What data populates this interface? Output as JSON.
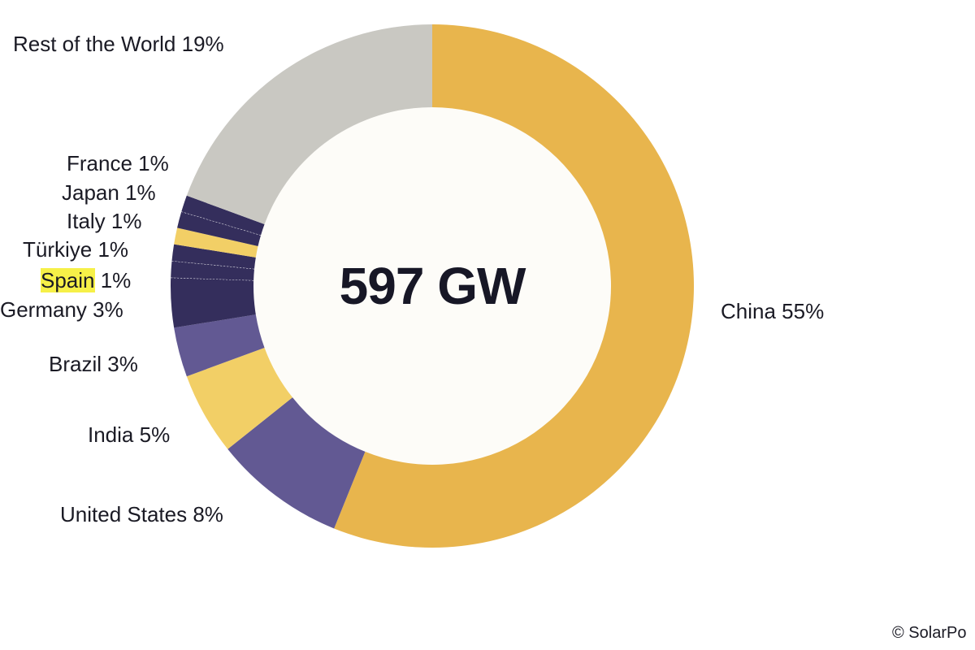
{
  "chart_data": {
    "type": "pie",
    "title": "",
    "center_label": "597 GW",
    "slices": [
      {
        "name": "China",
        "value": 55,
        "label": "China 55%",
        "color": "#e8b54d"
      },
      {
        "name": "United States",
        "value": 8,
        "label": "United States 8%",
        "color": "#625993"
      },
      {
        "name": "India",
        "value": 5,
        "label": "India 5%",
        "color": "#f2cf66"
      },
      {
        "name": "Brazil",
        "value": 3,
        "label": "Brazil 3%",
        "color": "#625993"
      },
      {
        "name": "Germany",
        "value": 3,
        "label": "Germany 3%",
        "color": "#342e5c"
      },
      {
        "name": "Spain",
        "value": 1,
        "label_name": "Spain",
        "label_value": " 1%",
        "color": "#342e5c",
        "highlighted": true
      },
      {
        "name": "Türkiye",
        "value": 1,
        "label": "Türkiye 1%",
        "color": "#342e5c"
      },
      {
        "name": "Italy",
        "value": 1,
        "label": "Italy 1%",
        "color": "#f2cf66"
      },
      {
        "name": "Japan",
        "value": 1,
        "label": "Japan 1%",
        "color": "#342e5c"
      },
      {
        "name": "France",
        "value": 1,
        "label": "France 1%",
        "color": "#342e5c"
      },
      {
        "name": "Rest of the World",
        "value": 19,
        "label": "Rest of the World 19%",
        "color": "#c9c8c2"
      }
    ]
  },
  "footer": {
    "copyright": "© SolarPo"
  }
}
